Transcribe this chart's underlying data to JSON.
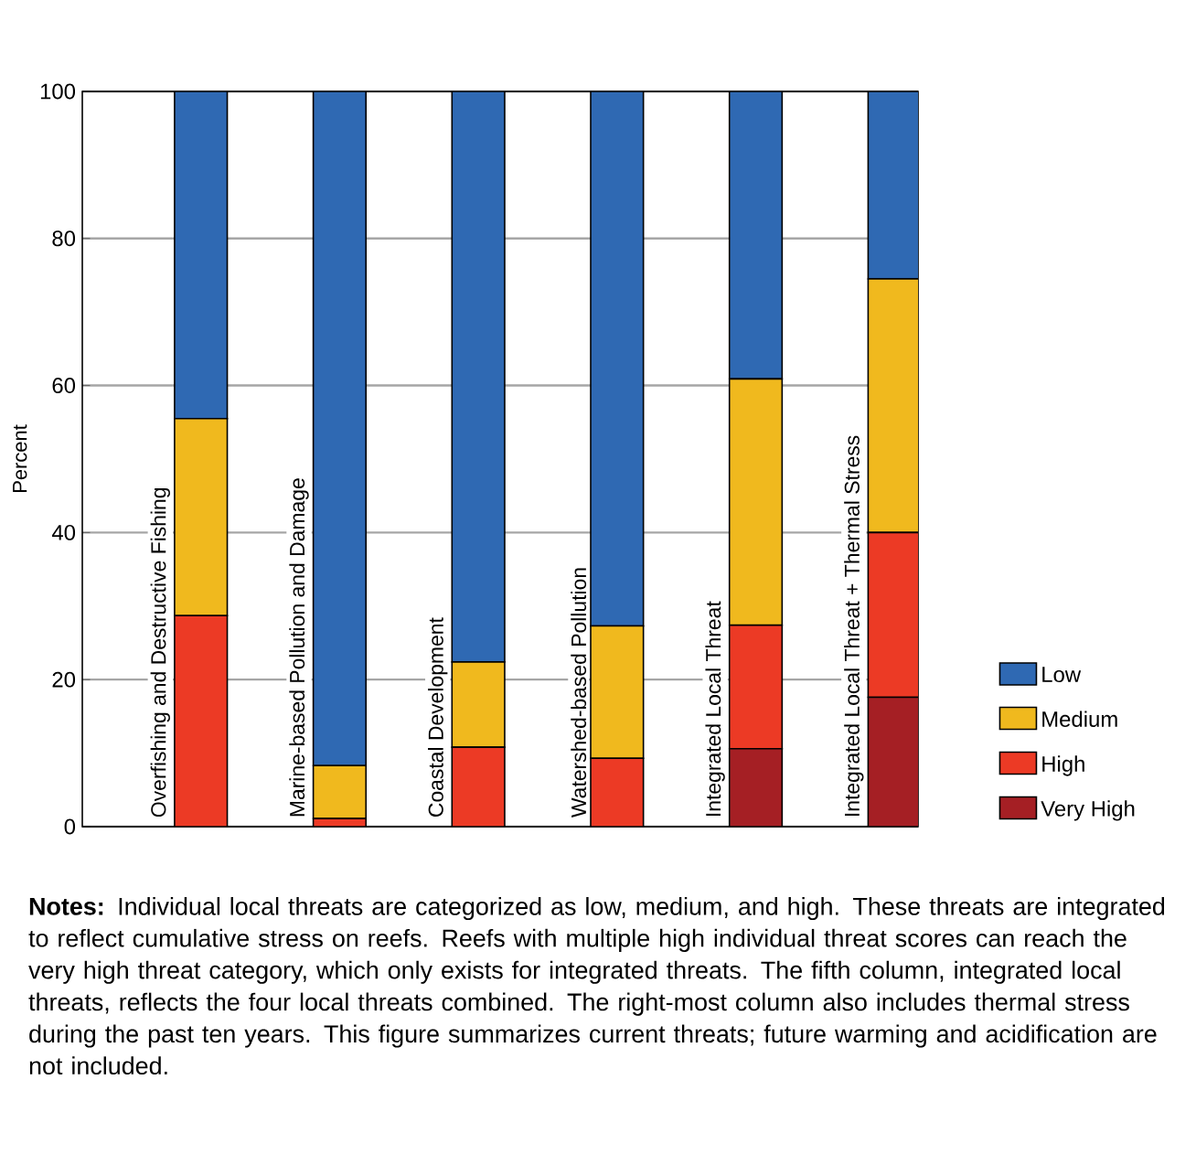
{
  "chart_data": {
    "type": "bar",
    "stacked": true,
    "ylabel": "Percent",
    "categories": [
      "Overfishing and Destructive Fishing",
      "Marine-based Pollution and Damage",
      "Coastal Development",
      "Watershed-based Pollution",
      "Integrated Local Threat",
      "Integrated Local Threat + Thermal Stress"
    ],
    "series": [
      {
        "name": "Very High",
        "color": "#a51f24",
        "values": [
          0,
          0,
          0,
          0,
          10.6,
          17.6
        ]
      },
      {
        "name": "High",
        "color": "#ec3a25",
        "values": [
          28.7,
          1.1,
          10.8,
          9.3,
          16.8,
          22.4
        ]
      },
      {
        "name": "Medium",
        "color": "#f0b91e",
        "values": [
          26.8,
          7.2,
          11.6,
          18.0,
          33.5,
          34.5
        ]
      },
      {
        "name": "Low",
        "color": "#2f69b3",
        "values": [
          44.5,
          91.7,
          77.6,
          72.7,
          39.1,
          25.5
        ]
      }
    ],
    "ylim": [
      0,
      100
    ],
    "yticks": [
      0,
      20,
      40,
      60,
      80,
      100
    ],
    "grid": "y",
    "legend": "bottom right",
    "annotations": [
      "**Notes:** Individual local threats are categorized as low, medium, and high. These threats are integrated to reflect cumulative stress on reefs. Reefs with multiple high individual threat scores can reach the very high threat category, which only exists for integrated threats. The fifth column, integrated local threats, reflects the four local threats combined. The right-most column also includes thermal stress during the past ten years. This figure summarizes current threats; future warming and acidification are not included."
    ]
  }
}
